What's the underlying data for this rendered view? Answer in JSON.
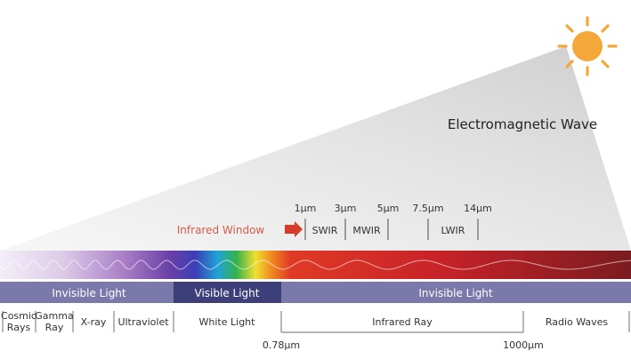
{
  "title": "Electromagnetic Wave",
  "infrared_window": {
    "label": "Infrared Window",
    "wavelengths": [
      "1µm",
      "3µm",
      "5µm",
      "7.5µm",
      "14µm"
    ],
    "bands": [
      "SWIR",
      "MWIR",
      "LWIR"
    ]
  },
  "light_bar": {
    "segments": [
      {
        "label": "Invisible Light"
      },
      {
        "label": "Visible Light"
      },
      {
        "label": "Invisible Light"
      }
    ]
  },
  "spectrum_categories": {
    "cosmic": [
      "Cosmic",
      "Rays"
    ],
    "gamma": [
      "Gamma",
      "Ray"
    ],
    "xray": "X-ray",
    "uv": "Ultraviolet",
    "white": "White Light",
    "infrared": "Infrared Ray",
    "radio": "Radio Waves"
  },
  "boundaries": [
    "0.78µm",
    "1000µm"
  ],
  "colors": {
    "sun": "#f5a83a",
    "arrow": "#d83a28",
    "infrared_label": "#d85a4a",
    "bar_dark": "#3d3f7a",
    "bar_light": "#7b79ab",
    "text": "#333333"
  },
  "icons": {
    "sun": "sun-icon",
    "arrow": "right-arrow-icon"
  }
}
